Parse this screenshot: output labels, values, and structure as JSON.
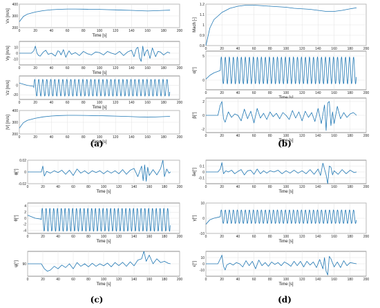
{
  "colors": {
    "trace": "#1f77b4",
    "axis": "#444444",
    "grid": "#e2e2e2"
  },
  "panels": [
    {
      "id": "a",
      "label": "(a)"
    },
    {
      "id": "b",
      "label": "(b)"
    },
    {
      "id": "c",
      "label": "(c)"
    },
    {
      "id": "d",
      "label": "(d)"
    }
  ],
  "chart_data": [
    {
      "type": "line",
      "panel": "a",
      "xlabel": "Time [s]",
      "ylabel": "Vx [m/s]",
      "xlim": [
        0,
        200
      ],
      "ylim": [
        200,
        400
      ],
      "yticks": [
        200,
        300,
        400
      ],
      "xticks": [
        0,
        20,
        40,
        60,
        80,
        100,
        120,
        140,
        160,
        180,
        200
      ],
      "grid": true,
      "series": [
        {
          "x": [
            0,
            5,
            10,
            20,
            30,
            40,
            50,
            60,
            70,
            80,
            90,
            100,
            110,
            120,
            130,
            140,
            150,
            160,
            170,
            180,
            188
          ],
          "y": [
            250,
            295,
            315,
            333,
            345,
            352,
            356,
            358,
            358,
            357,
            356,
            355,
            353,
            351,
            349,
            347,
            344,
            342,
            344,
            347,
            349
          ]
        }
      ]
    },
    {
      "type": "line",
      "panel": "a",
      "xlabel": "Time [s]",
      "ylabel": "Vy [m/s]",
      "xlim": [
        0,
        200
      ],
      "ylim": [
        -20,
        20
      ],
      "yticks": [
        -10,
        0,
        10
      ],
      "xticks": [
        0,
        20,
        40,
        60,
        80,
        100,
        120,
        140,
        160,
        180,
        200
      ],
      "grid": true,
      "series": [
        {
          "x": [
            0,
            15,
            18,
            20,
            22,
            24,
            26,
            30,
            33,
            36,
            40,
            45,
            48,
            50,
            52,
            55,
            58,
            60,
            62,
            65,
            70,
            75,
            80,
            85,
            90,
            95,
            100,
            105,
            110,
            115,
            120,
            125,
            130,
            135,
            140,
            143,
            146,
            148,
            150,
            152,
            154,
            156,
            158,
            160,
            163,
            166,
            170,
            173,
            176,
            180,
            185,
            188
          ],
          "y": [
            0,
            0,
            4,
            12,
            0,
            -4,
            -5,
            2,
            5,
            -2,
            0,
            -5,
            4,
            3,
            -3,
            6,
            -7,
            -1,
            4,
            -2,
            1,
            -4,
            3,
            -1,
            -3,
            2,
            1,
            -3,
            3,
            0,
            -2,
            3,
            -4,
            2,
            5,
            -6,
            8,
            10,
            -8,
            -14,
            12,
            -5,
            3,
            6,
            -9,
            9,
            -6,
            3,
            2,
            -3,
            2,
            0
          ]
        }
      ]
    },
    {
      "type": "line",
      "panel": "a",
      "xlabel": "Time [s]",
      "ylabel": "Vz [m/s]",
      "xlim": [
        0,
        200
      ],
      "ylim": [
        -30,
        20
      ],
      "yticks": [
        -20,
        0
      ],
      "xticks": [
        0,
        20,
        40,
        60,
        80,
        100,
        120,
        140,
        160,
        180,
        200
      ],
      "grid": true,
      "oscillation": {
        "from": 18,
        "to": 188,
        "period": 5,
        "center": -5,
        "amplitude": 18
      },
      "series": [
        {
          "x": [
            0,
            10,
            18
          ],
          "y": [
            5,
            0,
            -2
          ]
        }
      ]
    },
    {
      "type": "line",
      "panel": "a",
      "xlabel": "Time [s]",
      "ylabel": "|V| [m/s]",
      "xlim": [
        0,
        200
      ],
      "ylim": [
        200,
        400
      ],
      "yticks": [
        200,
        300,
        400
      ],
      "xticks": [
        0,
        20,
        40,
        60,
        80,
        100,
        120,
        140,
        160,
        180,
        200
      ],
      "grid": true,
      "series": [
        {
          "x": [
            0,
            5,
            10,
            20,
            30,
            40,
            50,
            60,
            70,
            80,
            90,
            100,
            110,
            120,
            130,
            140,
            150,
            160,
            170,
            180,
            188
          ],
          "y": [
            250,
            296,
            316,
            334,
            346,
            353,
            357,
            359,
            359,
            358,
            357,
            356,
            354,
            352,
            350,
            348,
            345,
            343,
            345,
            348,
            350
          ]
        }
      ]
    },
    {
      "type": "line",
      "panel": "b",
      "xlabel": "Time [s]",
      "ylabel": "Mach [-]",
      "xlim": [
        0,
        200
      ],
      "ylim": [
        0.8,
        1.2
      ],
      "yticks": [
        0.8,
        0.9,
        1,
        1.1,
        1.2
      ],
      "xticks": [
        0,
        20,
        40,
        60,
        80,
        100,
        120,
        140,
        160,
        180,
        200
      ],
      "grid": true,
      "series": [
        {
          "x": [
            0,
            5,
            10,
            20,
            30,
            40,
            50,
            60,
            70,
            80,
            90,
            100,
            110,
            120,
            130,
            140,
            150,
            160,
            170,
            180,
            188
          ],
          "y": [
            0.8,
            0.97,
            1.05,
            1.12,
            1.16,
            1.18,
            1.19,
            1.19,
            1.185,
            1.18,
            1.175,
            1.17,
            1.16,
            1.155,
            1.15,
            1.14,
            1.13,
            1.13,
            1.14,
            1.155,
            1.165
          ]
        }
      ]
    },
    {
      "type": "line",
      "panel": "b",
      "xlabel": "Time [s]",
      "ylabel": "α[°]",
      "xlim": [
        0,
        200
      ],
      "ylim": [
        -2,
        6
      ],
      "yticks": [
        0,
        5
      ],
      "xticks": [
        0,
        20,
        40,
        60,
        80,
        100,
        120,
        140,
        160,
        180,
        200
      ],
      "grid": true,
      "oscillation": {
        "from": 18,
        "to": 188,
        "period": 5,
        "center": 2,
        "amplitude": 2.8
      },
      "series": [
        {
          "x": [
            0,
            5,
            10,
            18
          ],
          "y": [
            0.2,
            1,
            1.5,
            2
          ]
        }
      ]
    },
    {
      "type": "line",
      "panel": "b",
      "xlabel": "Time [s]",
      "ylabel": "β[°]",
      "xlim": [
        0,
        200
      ],
      "ylim": [
        -2.5,
        2.5
      ],
      "yticks": [
        -2,
        0,
        2
      ],
      "xticks": [
        0,
        20,
        40,
        60,
        80,
        100,
        120,
        140,
        160,
        180,
        200
      ],
      "grid": true,
      "series": [
        {
          "x": [
            0,
            15,
            18,
            20,
            22,
            24,
            28,
            32,
            36,
            40,
            44,
            48,
            52,
            56,
            60,
            64,
            68,
            72,
            76,
            80,
            84,
            88,
            92,
            96,
            100,
            104,
            108,
            112,
            116,
            120,
            124,
            128,
            132,
            136,
            140,
            144,
            148,
            150,
            152,
            154,
            156,
            158,
            160,
            164,
            168,
            172,
            176,
            180,
            184,
            188
          ],
          "y": [
            0,
            0,
            1.5,
            2,
            -0.5,
            -1,
            0.5,
            -0.3,
            0.2,
            0,
            -0.8,
            0.9,
            -0.5,
            0.6,
            -1.1,
            1,
            -0.4,
            0.3,
            -0.6,
            0.5,
            -0.2,
            0.3,
            -0.5,
            0.4,
            0,
            -0.6,
            0.7,
            -0.4,
            0.5,
            -0.8,
            0.6,
            -0.3,
            0.4,
            -0.9,
            1,
            -1.2,
            1.5,
            -2.2,
            1.8,
            2,
            -1.5,
            0.5,
            -1.2,
            1.3,
            -0.5,
            0.4,
            -0.3,
            0.2,
            0.4,
            0
          ]
        }
      ]
    },
    {
      "type": "line",
      "panel": "c",
      "xlabel": "Time [s]",
      "ylabel": "ϕ[°]",
      "xlim": [
        0,
        200
      ],
      "ylim": [
        -0.02,
        0.02
      ],
      "yticks": [
        -0.02,
        0,
        0.02
      ],
      "xticks": [
        0,
        20,
        40,
        60,
        80,
        100,
        120,
        140,
        160,
        180,
        200
      ],
      "grid": true,
      "series": [
        {
          "x": [
            0,
            18,
            20,
            22,
            25,
            30,
            35,
            40,
            45,
            50,
            55,
            60,
            65,
            70,
            75,
            80,
            85,
            90,
            95,
            100,
            105,
            110,
            115,
            120,
            125,
            130,
            135,
            140,
            145,
            150,
            152,
            154,
            156,
            158,
            160,
            165,
            170,
            175,
            178,
            180,
            183,
            186,
            188
          ],
          "y": [
            0,
            0,
            0.01,
            -0.007,
            0.001,
            -0.002,
            0.002,
            -0.001,
            0.003,
            -0.004,
            0.003,
            -0.006,
            0.005,
            -0.002,
            0.002,
            -0.003,
            0.002,
            -0.001,
            0.002,
            -0.003,
            0.002,
            -0.002,
            0.002,
            -0.003,
            0.004,
            -0.004,
            0.003,
            0.006,
            -0.008,
            0.01,
            -0.015,
            0.012,
            -0.016,
            0.008,
            -0.006,
            0.004,
            -0.005,
            0.006,
            0.02,
            -0.008,
            0.005,
            -0.002,
            0
          ]
        }
      ]
    },
    {
      "type": "line",
      "panel": "c",
      "xlabel": "Time [s]",
      "ylabel": "θ[°]",
      "xlim": [
        0,
        200
      ],
      "ylim": [
        -5,
        5
      ],
      "yticks": [
        -4,
        -2,
        0,
        2,
        4
      ],
      "xticks": [
        0,
        20,
        40,
        60,
        80,
        100,
        120,
        140,
        160,
        180,
        200
      ],
      "grid": true,
      "oscillation": {
        "from": 18,
        "to": 188,
        "period": 5,
        "center": -0.5,
        "amplitude": 3.8
      },
      "series": [
        {
          "x": [
            0,
            10,
            18
          ],
          "y": [
            1,
            0,
            -0.3
          ]
        }
      ]
    },
    {
      "type": "line",
      "panel": "c",
      "xlabel": "Time [s]",
      "ylabel": "ψ[°]",
      "xlim": [
        0,
        200
      ],
      "ylim": [
        85,
        95
      ],
      "yticks": [
        90
      ],
      "xticks": [
        0,
        20,
        40,
        60,
        80,
        100,
        120,
        140,
        160,
        180,
        200
      ],
      "grid": true,
      "series": [
        {
          "x": [
            0,
            18,
            22,
            26,
            30,
            35,
            40,
            45,
            50,
            55,
            60,
            65,
            70,
            75,
            80,
            85,
            90,
            95,
            100,
            105,
            110,
            115,
            120,
            125,
            130,
            135,
            140,
            145,
            150,
            153,
            156,
            160,
            165,
            170,
            175,
            180,
            185,
            188
          ],
          "y": [
            90,
            90,
            88,
            87,
            87.5,
            89,
            88,
            89.5,
            88.5,
            90,
            88,
            90.5,
            89,
            90,
            88.8,
            90.2,
            89,
            90,
            89.2,
            90.3,
            88.8,
            90.5,
            89.3,
            90.6,
            89,
            90.8,
            89.2,
            91.5,
            92,
            95.5,
            91,
            93.5,
            90,
            92,
            90.5,
            91,
            90.2,
            90
          ]
        }
      ]
    },
    {
      "type": "line",
      "panel": "d",
      "xlabel": "Time [s]",
      "ylabel": "δe[°]",
      "xlim": [
        0,
        200
      ],
      "ylim": [
        -0.2,
        0.2
      ],
      "yticks": [
        -0.1,
        0,
        0.1
      ],
      "xticks": [
        0,
        20,
        40,
        60,
        80,
        100,
        120,
        140,
        160,
        180,
        200
      ],
      "grid": true,
      "series": [
        {
          "x": [
            0,
            15,
            18,
            20,
            22,
            25,
            28,
            32,
            36,
            40,
            44,
            48,
            52,
            56,
            60,
            64,
            68,
            72,
            76,
            80,
            85,
            90,
            95,
            100,
            105,
            110,
            115,
            120,
            125,
            130,
            135,
            140,
            143,
            146,
            150,
            152,
            154,
            156,
            158,
            160,
            165,
            170,
            175,
            180,
            185,
            188
          ],
          "y": [
            0,
            0,
            0.05,
            0.16,
            -0.03,
            0.02,
            0,
            0.03,
            -0.03,
            0.01,
            0.04,
            -0.05,
            0.02,
            0.03,
            -0.04,
            0.05,
            -0.03,
            0.02,
            -0.02,
            0.02,
            0,
            0.03,
            -0.03,
            0.02,
            -0.02,
            0.03,
            -0.02,
            0.02,
            -0.03,
            0.04,
            -0.04,
            0.05,
            -0.06,
            0.15,
            -0.05,
            -0.2,
            0.1,
            0.08,
            -0.05,
            0.02,
            -0.04,
            0.04,
            -0.03,
            0.03,
            -0.01,
            0
          ]
        }
      ]
    },
    {
      "type": "line",
      "panel": "d",
      "xlabel": "Time [s]",
      "ylabel": "γ[°]",
      "xlim": [
        0,
        200
      ],
      "ylim": [
        -10,
        10
      ],
      "yticks": [
        -10,
        0,
        10
      ],
      "xticks": [
        0,
        20,
        40,
        60,
        80,
        100,
        120,
        140,
        160,
        180,
        200
      ],
      "grid": true,
      "oscillation": {
        "from": 18,
        "to": 188,
        "period": 5,
        "center": 1,
        "amplitude": 4.5
      },
      "series": [
        {
          "x": [
            0,
            5,
            10,
            18
          ],
          "y": [
            -4,
            -1,
            0,
            1
          ]
        }
      ]
    },
    {
      "type": "line",
      "panel": "d",
      "xlabel": "Time [s]",
      "ylabel": "ϵ[°]",
      "xlim": [
        0,
        200
      ],
      "ylim": [
        -20,
        20
      ],
      "yticks": [
        -10,
        0,
        10
      ],
      "xticks": [
        0,
        20,
        40,
        60,
        80,
        100,
        120,
        140,
        160,
        180,
        200
      ],
      "grid": true,
      "series": [
        {
          "x": [
            0,
            15,
            18,
            20,
            22,
            24,
            26,
            30,
            34,
            38,
            42,
            46,
            50,
            54,
            58,
            62,
            66,
            70,
            74,
            78,
            82,
            86,
            90,
            94,
            98,
            102,
            106,
            110,
            114,
            118,
            122,
            126,
            130,
            134,
            138,
            142,
            146,
            148,
            150,
            152,
            154,
            156,
            160,
            164,
            168,
            172,
            176,
            180,
            184,
            188
          ],
          "y": [
            0,
            0,
            8,
            14,
            -4,
            -10,
            -2,
            1,
            -2,
            2,
            0,
            -5,
            5,
            -3,
            4,
            -8,
            6,
            -3,
            2,
            -4,
            3,
            -1,
            2,
            -3,
            3,
            0,
            -4,
            4,
            -3,
            4,
            -5,
            4,
            -2,
            3,
            -6,
            7,
            -8,
            10,
            -12,
            -18,
            12,
            8,
            -5,
            3,
            -6,
            5,
            -3,
            2,
            1,
            0
          ]
        }
      ]
    }
  ]
}
